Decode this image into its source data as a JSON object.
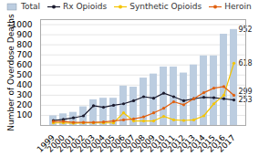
{
  "chart_data": {
    "type": "bar",
    "categories": [
      "1999",
      "2000",
      "2001",
      "2002",
      "2003",
      "2004",
      "2005",
      "2006",
      "2007",
      "2008",
      "2009",
      "2010",
      "2011",
      "2012",
      "2013",
      "2014",
      "2015",
      "2016",
      "2017"
    ],
    "series": [
      {
        "name": "Total",
        "type": "bar",
        "color": "#bccde0",
        "values": [
          95,
          115,
          130,
          185,
          255,
          270,
          270,
          390,
          380,
          470,
          510,
          580,
          580,
          520,
          600,
          690,
          690,
          905,
          952
        ]
      },
      {
        "name": "Rx Opioids",
        "type": "line",
        "marker": "circle",
        "color": "#1a1a2e",
        "values": [
          50,
          60,
          75,
          95,
          195,
          180,
          200,
          215,
          245,
          285,
          270,
          320,
          285,
          245,
          265,
          280,
          275,
          265,
          253
        ]
      },
      {
        "name": "Synthetic Opioids",
        "type": "line",
        "marker": "circle",
        "color": "#f5c400",
        "values": [
          25,
          25,
          22,
          25,
          25,
          25,
          25,
          125,
          45,
          45,
          45,
          90,
          55,
          50,
          55,
          95,
          215,
          300,
          618
        ]
      },
      {
        "name": "Heroin",
        "type": "line",
        "marker": "circle",
        "color": "#e06010",
        "values": [
          40,
          40,
          30,
          30,
          30,
          35,
          45,
          55,
          65,
          85,
          125,
          170,
          235,
          205,
          265,
          325,
          370,
          385,
          299
        ]
      }
    ],
    "ylabel": "Number of Overdose Deaths",
    "ylim": [
      0,
      1050
    ],
    "yticks": [
      100,
      200,
      300,
      400,
      500,
      600,
      700,
      800,
      900,
      1000
    ],
    "grid": true,
    "legend": "upper left",
    "annotations": [
      {
        "text": "952",
        "series": "Total"
      },
      {
        "text": "618",
        "series": "Synthetic Opioids"
      },
      {
        "text": "299",
        "series": "Heroin"
      },
      {
        "text": "253",
        "series": "Rx Opioids"
      }
    ]
  }
}
